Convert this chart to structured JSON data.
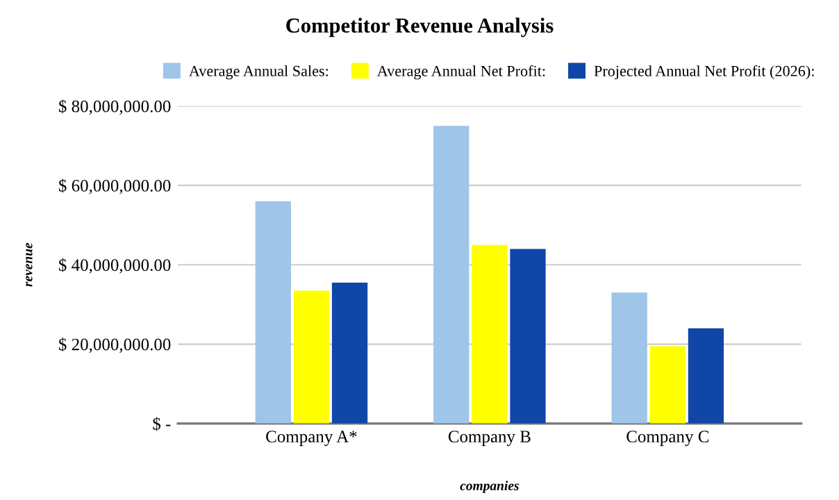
{
  "chart_data": {
    "type": "bar",
    "title": "Competitor Revenue Analysis",
    "xlabel": "companies",
    "ylabel": "revenue",
    "categories": [
      "Company A*",
      "Company B",
      "Company C"
    ],
    "series": [
      {
        "name": "Average Annual Sales:",
        "color": "#9fc5e8",
        "values": [
          56000000,
          75000000,
          33000000
        ]
      },
      {
        "name": "Average Annual Net Profit:",
        "color": "#ffff00",
        "values": [
          33500000,
          45000000,
          19500000
        ]
      },
      {
        "name": "Projected Annual Net Profit (2026):",
        "color": "#1046a8",
        "values": [
          35500000,
          44000000,
          24000000
        ]
      }
    ],
    "ylim": [
      0,
      80000000
    ],
    "yticks": [
      {
        "value": 0,
        "label": "$ -"
      },
      {
        "value": 20000000,
        "label": "$ 20,000,000.00"
      },
      {
        "value": 40000000,
        "label": "$ 40,000,000.00"
      },
      {
        "value": 60000000,
        "label": "$ 60,000,000.00"
      },
      {
        "value": 80000000,
        "label": "$ 80,000,000.00"
      }
    ],
    "grid": "y",
    "legend": "top"
  }
}
